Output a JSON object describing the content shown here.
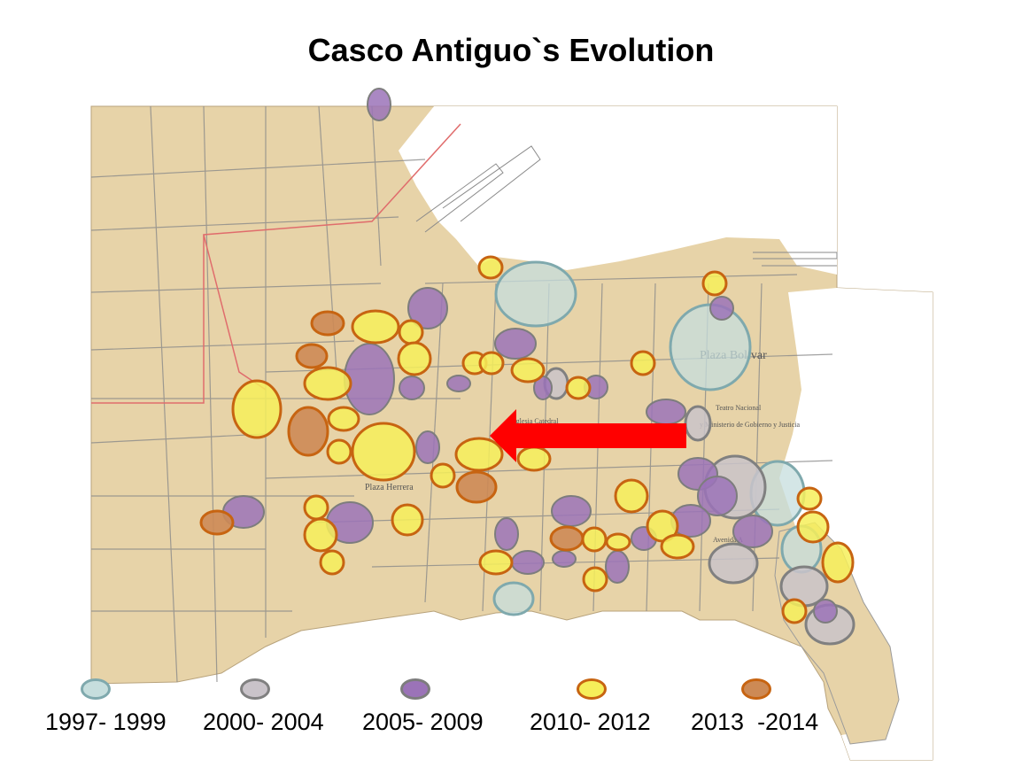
{
  "title": "Casco Antiguo`s Evolution",
  "map_labels": {
    "plaza_bolivar": "Plaza Bolivar",
    "plaza_herrera": "Plaza Herrera",
    "catedral": "Iglesia Catedral",
    "teatro": "Teatro Nacional",
    "ministerio": "y Ministerio de Gobierno y Justicia",
    "avenida": "Avenida A"
  },
  "legend": [
    {
      "label": "1997- 1999",
      "fill": "#c6dedd",
      "stroke": "#7fa9ad"
    },
    {
      "label": "2000- 2004",
      "fill": "#c9c3c9",
      "stroke": "#808080"
    },
    {
      "label": "2005- 2009",
      "fill": "#9b73b8",
      "stroke": "#7d7d7d"
    },
    {
      "label": "2010- 2012",
      "fill": "#f6ee5a",
      "stroke": "#c76411"
    },
    {
      "label": "2013  -2014",
      "fill": "#cd8a55",
      "stroke": "#c76411"
    }
  ],
  "colors": {
    "map_land": "#e7d3a8",
    "map_lines": "#8a8a8a",
    "arrow": "#ff0000"
  }
}
